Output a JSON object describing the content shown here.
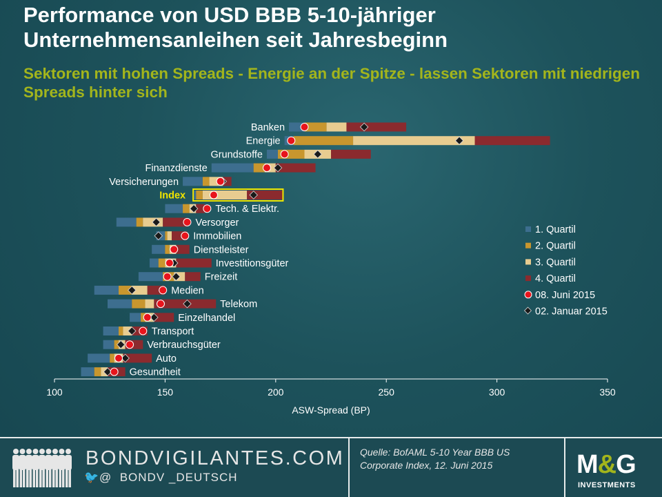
{
  "title": "Performance von USD BBB 5-10-jähriger Unternehmensanleihen seit Jahresbeginn",
  "subtitle": "Sektoren mit hohen Spreads - Energie an der Spitze - lassen Sektoren mit niedrigen Spreads hinter sich",
  "footer": {
    "brand_url": "BONDVIGILANTES.COM",
    "twitter_at": "@",
    "twitter_handle": "BONDV _DEUTSCH",
    "source": "Quelle: BofAML 5-10 Year BBB US Corporate Index, 12. Juni 2015",
    "logo": "M&G",
    "logo_sub": "INVESTMENTS"
  },
  "colors": {
    "q1": "#3d6e8f",
    "q2": "#c8962e",
    "q3": "#e8cc90",
    "q4": "#8b2a2e",
    "dot_jun": "#e8141c",
    "marker_jan": "#1a1a1a",
    "highlight": "#f0e400",
    "axis_text": "#ffffff"
  },
  "chart_data": {
    "type": "floating-bar",
    "title": "Performance von USD BBB 5-10-jähriger Unternehmensanleihen seit Jahresbeginn",
    "xlabel": "ASW-Spread (BP)",
    "ylabel": "",
    "xlim": [
      100,
      350
    ],
    "xticks": [
      100,
      150,
      200,
      250,
      300,
      350
    ],
    "legend": [
      "1. Quartil",
      "2. Quartil",
      "3. Quartil",
      "4. Quartil",
      "08. Juni 2015",
      "02. Januar 2015"
    ],
    "legend_position": "right",
    "highlight_category": "Index",
    "categories": [
      {
        "name": "Banken",
        "quartiles": [
          206,
          213,
          223,
          232,
          259
        ],
        "jun2015": 213,
        "jan2015": 240
      },
      {
        "name": "Energie",
        "quartiles": [
          204,
          208,
          235,
          290,
          324
        ],
        "jun2015": 207,
        "jan2015": 283
      },
      {
        "name": "Grundstoffe",
        "quartiles": [
          196,
          201,
          213,
          225,
          243
        ],
        "jun2015": 204,
        "jan2015": 219
      },
      {
        "name": "Finanzdienste",
        "quartiles": [
          171,
          190,
          195,
          200,
          218
        ],
        "jun2015": 196,
        "jan2015": 201
      },
      {
        "name": "Versicherungen",
        "quartiles": [
          158,
          167,
          170,
          176,
          180
        ],
        "jun2015": 175,
        "jan2015": 176
      },
      {
        "name": "Index",
        "quartiles": [
          163,
          164,
          167,
          187,
          203
        ],
        "jun2015": 172,
        "jan2015": 190
      },
      {
        "name": "Tech. & Elektr.",
        "quartiles": [
          150,
          158,
          161,
          164,
          168
        ],
        "jun2015": 169,
        "jan2015": 163
      },
      {
        "name": "Versorger",
        "quartiles": [
          128,
          137,
          140,
          149,
          160
        ],
        "jun2015": 160,
        "jan2015": 146
      },
      {
        "name": "Immobilien",
        "quartiles": [
          146,
          150,
          151,
          153,
          160
        ],
        "jun2015": 159,
        "jan2015": 147
      },
      {
        "name": "Dienstleister",
        "quartiles": [
          144,
          150,
          152,
          155,
          161
        ],
        "jun2015": 154,
        "jan2015": 154
      },
      {
        "name": "Investitionsgüter",
        "quartiles": [
          143,
          147,
          150,
          155,
          171
        ],
        "jun2015": 152,
        "jan2015": 154
      },
      {
        "name": "Freizeit",
        "quartiles": [
          138,
          149,
          154,
          159,
          166
        ],
        "jun2015": 151,
        "jan2015": 155
      },
      {
        "name": "Medien",
        "quartiles": [
          118,
          129,
          135,
          142,
          150
        ],
        "jun2015": 149,
        "jan2015": 135
      },
      {
        "name": "Telekom",
        "quartiles": [
          124,
          135,
          141,
          145,
          173
        ],
        "jun2015": 148,
        "jan2015": 160
      },
      {
        "name": "Einzelhandel",
        "quartiles": [
          134,
          139,
          141,
          145,
          154
        ],
        "jun2015": 142,
        "jan2015": 145
      },
      {
        "name": "Transport",
        "quartiles": [
          122,
          129,
          131,
          135,
          142
        ],
        "jun2015": 140,
        "jan2015": 135
      },
      {
        "name": "Verbrauchsgüter",
        "quartiles": [
          122,
          127,
          129,
          132,
          140
        ],
        "jun2015": 134,
        "jan2015": 130
      },
      {
        "name": "Auto",
        "quartiles": [
          115,
          125,
          127,
          131,
          144
        ],
        "jun2015": 129,
        "jan2015": 132
      },
      {
        "name": "Gesundheit",
        "quartiles": [
          112,
          118,
          121,
          124,
          132
        ],
        "jun2015": 127,
        "jan2015": 124
      }
    ]
  }
}
